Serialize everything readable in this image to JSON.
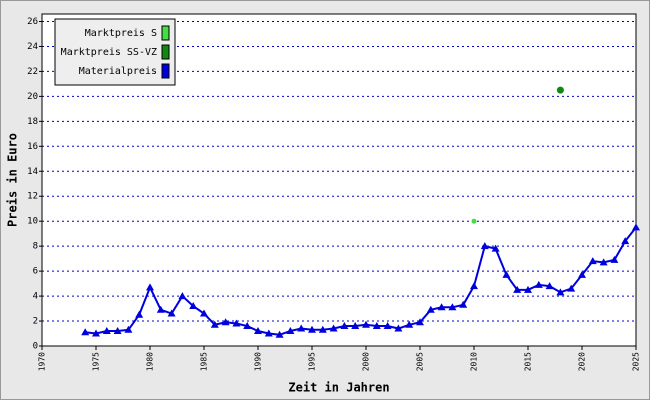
{
  "chart_data": {
    "type": "line",
    "x_label": "Zeit in Jahren",
    "y_label": "Preis in Euro",
    "xlim": [
      1970,
      2025
    ],
    "xticks": [
      1970,
      1975,
      1980,
      1985,
      1990,
      1995,
      2000,
      2005,
      2010,
      2015,
      2020,
      2025
    ],
    "ylim": [
      0,
      26.6
    ],
    "yticks": [
      0,
      2,
      4,
      6,
      8,
      10,
      12,
      14,
      16,
      18,
      20,
      22,
      24,
      26
    ],
    "grid": true,
    "legend": "top-left",
    "series": [
      {
        "name": "Marktpreis S",
        "color": "#44dd44",
        "type": "scatter",
        "x": [
          2010
        ],
        "values": [
          10
        ]
      },
      {
        "name": "Marktpreis SS-VZ",
        "color": "#118811",
        "type": "scatter",
        "x": [
          2018
        ],
        "values": [
          20.5
        ]
      },
      {
        "name": "Materialpreis",
        "color": "#0000dd",
        "type": "line",
        "x": [
          1974,
          1975,
          1976,
          1977,
          1978,
          1979,
          1980,
          1981,
          1982,
          1983,
          1984,
          1985,
          1986,
          1987,
          1988,
          1989,
          1990,
          1991,
          1992,
          1993,
          1994,
          1995,
          1996,
          1997,
          1998,
          1999,
          2000,
          2001,
          2002,
          2003,
          2004,
          2005,
          2006,
          2007,
          2008,
          2009,
          2010,
          2011,
          2012,
          2013,
          2014,
          2015,
          2016,
          2017,
          2018,
          2019,
          2020,
          2021,
          2022,
          2023,
          2024,
          2025
        ],
        "values": [
          1.1,
          1.0,
          1.2,
          1.2,
          1.3,
          2.5,
          4.7,
          2.9,
          2.6,
          4.0,
          3.2,
          2.6,
          1.7,
          1.9,
          1.8,
          1.6,
          1.2,
          1.0,
          0.9,
          1.2,
          1.4,
          1.3,
          1.3,
          1.4,
          1.6,
          1.6,
          1.7,
          1.6,
          1.6,
          1.4,
          1.7,
          1.9,
          2.9,
          3.1,
          3.1,
          3.3,
          4.8,
          8.0,
          7.8,
          5.7,
          4.5,
          4.5,
          4.9,
          4.8,
          4.3,
          4.6,
          5.7,
          6.8,
          6.7,
          6.9,
          8.4,
          9.5
        ]
      }
    ]
  }
}
